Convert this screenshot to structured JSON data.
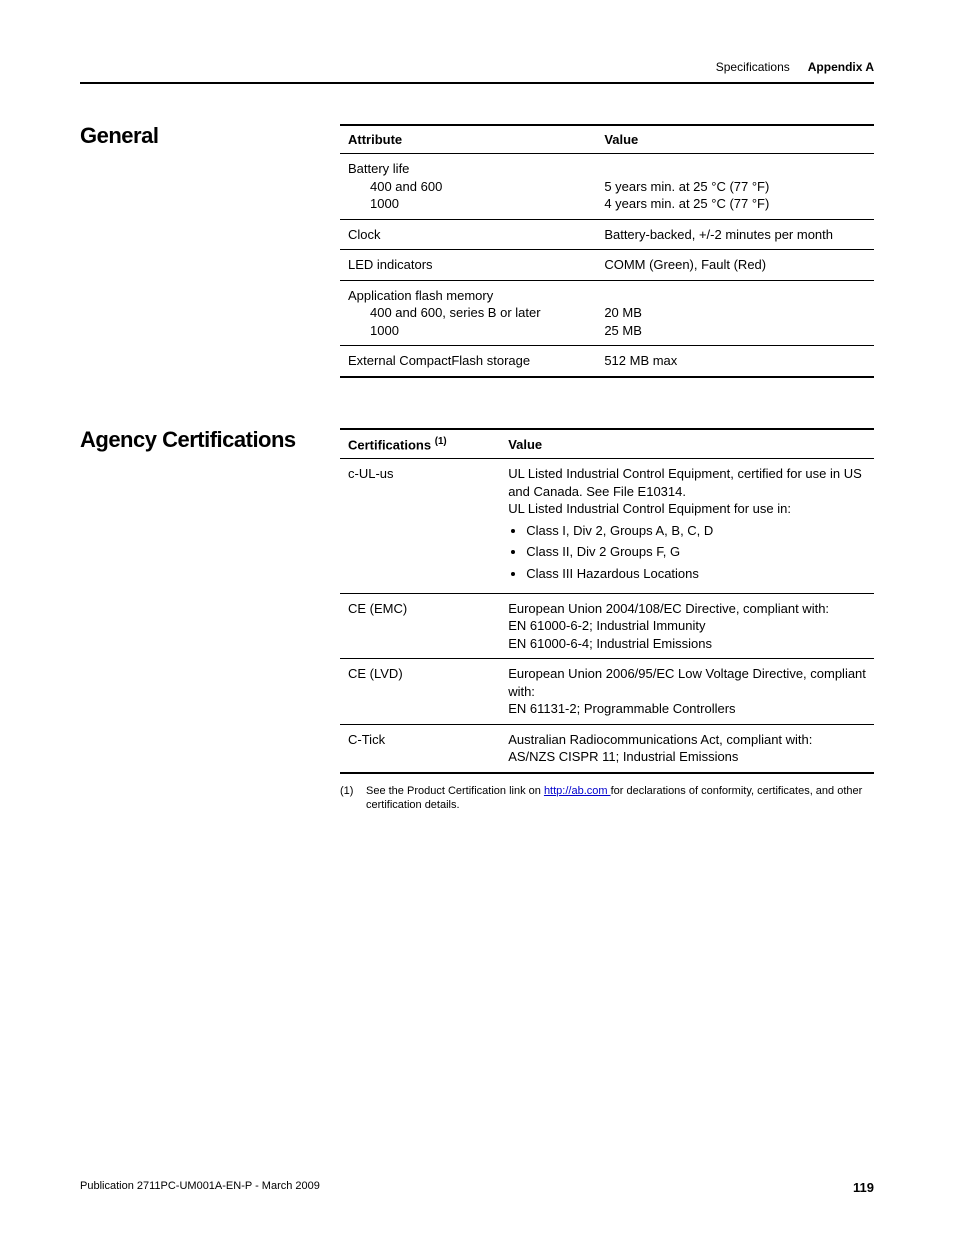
{
  "header": {
    "specs": "Specifications",
    "appendix": "Appendix A"
  },
  "sections": {
    "general": {
      "title": "General",
      "headers": {
        "attr": "Attribute",
        "val": "Value"
      },
      "rows": {
        "battery": {
          "label": "Battery life",
          "sub1": "400 and 600",
          "sub2": "1000",
          "val1": "5 years min. at 25 °C (77 °F)",
          "val2": "4 years min. at 25 °C (77 °F)"
        },
        "clock": {
          "label": "Clock",
          "val": "Battery-backed, +/-2 minutes per month"
        },
        "led": {
          "label": "LED indicators",
          "val": "COMM (Green), Fault (Red)"
        },
        "flash": {
          "label": "Application flash memory",
          "sub1": "400 and 600, series B or later",
          "sub2": "1000",
          "val1": "20 MB",
          "val2": "25 MB"
        },
        "cf": {
          "label": "External CompactFlash storage",
          "val": "512 MB max"
        }
      }
    },
    "agency": {
      "title": "Agency Certifications",
      "headers": {
        "cert": "Certifications",
        "sup": "(1)",
        "val": "Value"
      },
      "rows": {
        "cul": {
          "label": "c-UL-us",
          "line1": "UL Listed Industrial Control Equipment, certified for use in US and Canada. See File E10314.",
          "line2": "UL Listed Industrial Control Equipment for use in:",
          "b1": "Class I, Div 2, Groups A, B, C, D",
          "b2": "Class II, Div 2 Groups F, G",
          "b3": "Class III Hazardous Locations"
        },
        "ceemc": {
          "label": "CE (EMC)",
          "line1": "European Union 2004/108/EC Directive, compliant with:",
          "line2": "EN 61000-6-2; Industrial Immunity",
          "line3": "EN 61000-6-4; Industrial Emissions"
        },
        "celvd": {
          "label": "CE (LVD)",
          "line1": "European Union 2006/95/EC Low Voltage Directive, compliant with:",
          "line2": "EN 61131-2; Programmable Controllers"
        },
        "ctick": {
          "label": "C-Tick",
          "line1": "Australian Radiocommunications Act, compliant with:",
          "line2": "AS/NZS CISPR 11; Industrial Emissions"
        }
      },
      "footnote": {
        "num": "(1)",
        "pre": "See the Product Certification link on ",
        "link": "http://ab.com ",
        "post": "for declarations of conformity, certificates, and other certification details."
      }
    }
  },
  "footer": {
    "pub": "Publication 2711PC-UM001A-EN-P - March 2009",
    "page": "119"
  }
}
